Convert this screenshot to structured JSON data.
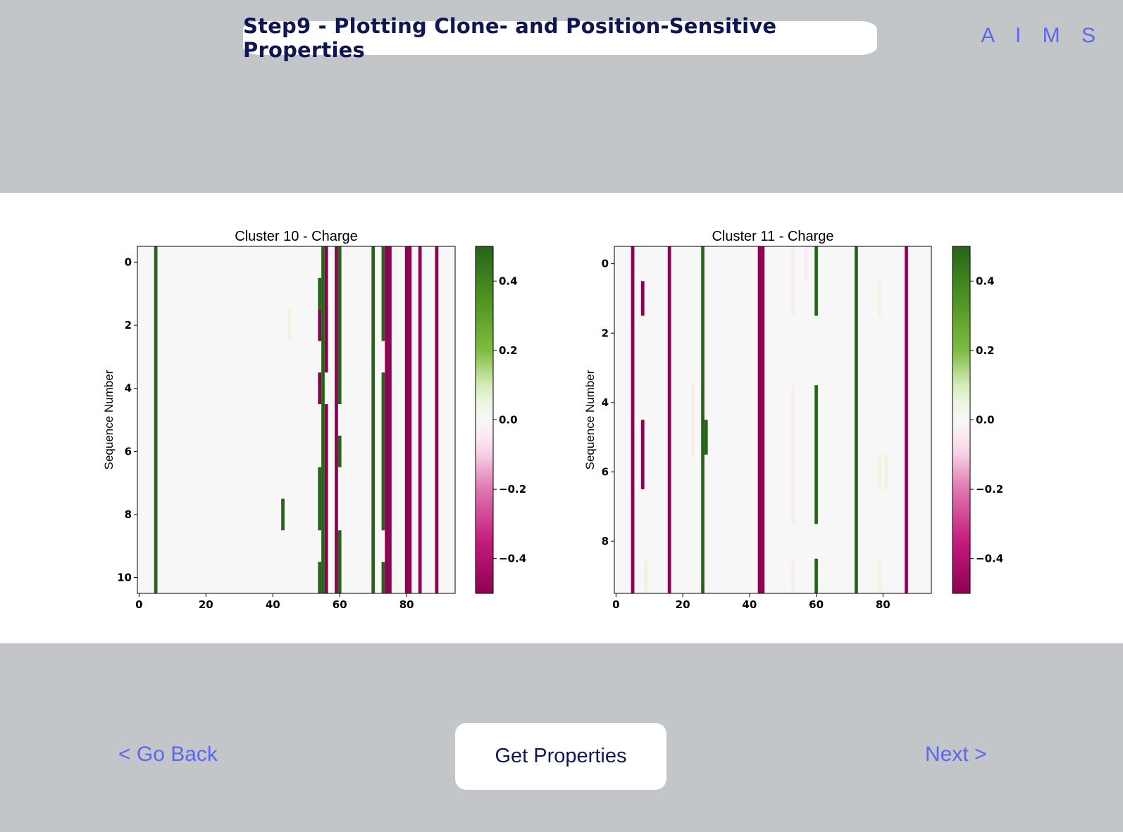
{
  "header": {
    "title": "Step9 - Plotting Clone- and Position-Sensitive Properties",
    "brand": "A I M S"
  },
  "footer": {
    "back_label": "< Go Back",
    "primary_label": "Get Properties",
    "next_label": "Next >"
  },
  "colors": {
    "page_bg": "#c3c6c9",
    "panel_bg": "#ffffff",
    "title_text": "#0f1654",
    "link": "#5b67f0",
    "heat_positive": "#2f7d1f",
    "heat_negative": "#a3085e",
    "heat_zero": "#f5f5f5"
  },
  "chart_data": [
    {
      "type": "heatmap",
      "title": "Cluster 10 - Charge",
      "ylabel": "Sequence Number",
      "xlabel": "",
      "xlim": [
        -0.5,
        94.5
      ],
      "ylim": [
        10.5,
        -0.5
      ],
      "xticks": [
        0,
        20,
        40,
        60,
        80
      ],
      "yticks": [
        0,
        2,
        4,
        6,
        8,
        10
      ],
      "colorbar": {
        "vmin": -0.5,
        "vmax": 0.5,
        "ticks": [
          0.4,
          0.2,
          0.0,
          -0.2,
          -0.4
        ],
        "tick_labels": [
          "0.4",
          "0.2",
          "0.0",
          "−0.2",
          "−0.4"
        ],
        "colormap": "PiYG"
      },
      "rows": 11,
      "columns": 95,
      "cells": [
        {
          "col": 5,
          "row_start": 0,
          "row_end": 10,
          "value": 0.5
        },
        {
          "col": 43,
          "row_start": 8,
          "row_end": 8,
          "value": 0.5
        },
        {
          "col": 45,
          "row_start": 2,
          "row_end": 2,
          "value": 0.05
        },
        {
          "col": 54,
          "row_start": 1,
          "row_end": 1,
          "value": 0.5
        },
        {
          "col": 54,
          "row_start": 2,
          "row_end": 2,
          "value": -0.5
        },
        {
          "col": 54,
          "row_start": 4,
          "row_end": 4,
          "value": -0.5
        },
        {
          "col": 54,
          "row_start": 7,
          "row_end": 8,
          "value": 0.5
        },
        {
          "col": 54,
          "row_start": 10,
          "row_end": 10,
          "value": 0.5
        },
        {
          "col": 55,
          "row_start": 0,
          "row_end": 10,
          "value": 0.5
        },
        {
          "col": 56,
          "row_start": 0,
          "row_end": 3,
          "value": -0.5
        },
        {
          "col": 56,
          "row_start": 5,
          "row_end": 10,
          "value": -0.5
        },
        {
          "col": 59,
          "row_start": 0,
          "row_end": 10,
          "value": -0.5
        },
        {
          "col": 60,
          "row_start": 0,
          "row_end": 4,
          "value": 0.5
        },
        {
          "col": 60,
          "row_start": 6,
          "row_end": 6,
          "value": 0.5
        },
        {
          "col": 60,
          "row_start": 9,
          "row_end": 10,
          "value": 0.5
        },
        {
          "col": 70,
          "row_start": 0,
          "row_end": 10,
          "value": 0.5
        },
        {
          "col": 73,
          "row_start": 0,
          "row_end": 2,
          "value": 0.5
        },
        {
          "col": 73,
          "row_start": 4,
          "row_end": 8,
          "value": 0.5
        },
        {
          "col": 73,
          "row_start": 10,
          "row_end": 10,
          "value": 0.5
        },
        {
          "col": 74,
          "row_start": 0,
          "row_end": 10,
          "value": -0.5
        },
        {
          "col": 75,
          "row_start": 0,
          "row_end": 10,
          "value": -0.5
        },
        {
          "col": 80,
          "row_start": 0,
          "row_end": 10,
          "value": -0.5
        },
        {
          "col": 81,
          "row_start": 0,
          "row_end": 10,
          "value": -0.5
        },
        {
          "col": 84,
          "row_start": 0,
          "row_end": 10,
          "value": -0.5
        },
        {
          "col": 89,
          "row_start": 0,
          "row_end": 10,
          "value": -0.5
        }
      ]
    },
    {
      "type": "heatmap",
      "title": "Cluster 11 - Charge",
      "ylabel": "Sequence Number",
      "xlabel": "",
      "xlim": [
        -0.5,
        94.5
      ],
      "ylim": [
        9.5,
        -0.5
      ],
      "xticks": [
        0,
        20,
        40,
        60,
        80
      ],
      "yticks": [
        0,
        2,
        4,
        6,
        8
      ],
      "colorbar": {
        "vmin": -0.5,
        "vmax": 0.5,
        "ticks": [
          0.4,
          0.2,
          0.0,
          -0.2,
          -0.4
        ],
        "tick_labels": [
          "0.4",
          "0.2",
          "0.0",
          "−0.2",
          "−0.4"
        ],
        "colormap": "PiYG"
      },
      "rows": 10,
      "columns": 95,
      "cells": [
        {
          "col": 5,
          "row_start": 0,
          "row_end": 9,
          "value": -0.5
        },
        {
          "col": 8,
          "row_start": 1,
          "row_end": 1,
          "value": -0.5
        },
        {
          "col": 8,
          "row_start": 5,
          "row_end": 6,
          "value": -0.5
        },
        {
          "col": 9,
          "row_start": 9,
          "row_end": 9,
          "value": 0.05
        },
        {
          "col": 16,
          "row_start": 0,
          "row_end": 9,
          "value": -0.5
        },
        {
          "col": 23,
          "row_start": 4,
          "row_end": 5,
          "value": -0.05
        },
        {
          "col": 26,
          "row_start": 0,
          "row_end": 9,
          "value": 0.5
        },
        {
          "col": 27,
          "row_start": 5,
          "row_end": 5,
          "value": 0.5
        },
        {
          "col": 43,
          "row_start": 0,
          "row_end": 9,
          "value": -0.5
        },
        {
          "col": 44,
          "row_start": 0,
          "row_end": 9,
          "value": -0.5
        },
        {
          "col": 53,
          "row_start": 0,
          "row_end": 1,
          "value": -0.04
        },
        {
          "col": 53,
          "row_start": 4,
          "row_end": 7,
          "value": -0.04
        },
        {
          "col": 53,
          "row_start": 9,
          "row_end": 9,
          "value": -0.04
        },
        {
          "col": 57,
          "row_start": 0,
          "row_end": 0,
          "value": -0.04
        },
        {
          "col": 60,
          "row_start": 0,
          "row_end": 1,
          "value": 0.5
        },
        {
          "col": 60,
          "row_start": 4,
          "row_end": 7,
          "value": 0.5
        },
        {
          "col": 60,
          "row_start": 9,
          "row_end": 9,
          "value": 0.5
        },
        {
          "col": 72,
          "row_start": 0,
          "row_end": 9,
          "value": 0.5
        },
        {
          "col": 79,
          "row_start": 1,
          "row_end": 1,
          "value": 0.05
        },
        {
          "col": 79,
          "row_start": 6,
          "row_end": 6,
          "value": 0.05
        },
        {
          "col": 79,
          "row_start": 9,
          "row_end": 9,
          "value": 0.05
        },
        {
          "col": 81,
          "row_start": 6,
          "row_end": 6,
          "value": 0.05
        },
        {
          "col": 87,
          "row_start": 0,
          "row_end": 9,
          "value": -0.5
        }
      ]
    }
  ]
}
